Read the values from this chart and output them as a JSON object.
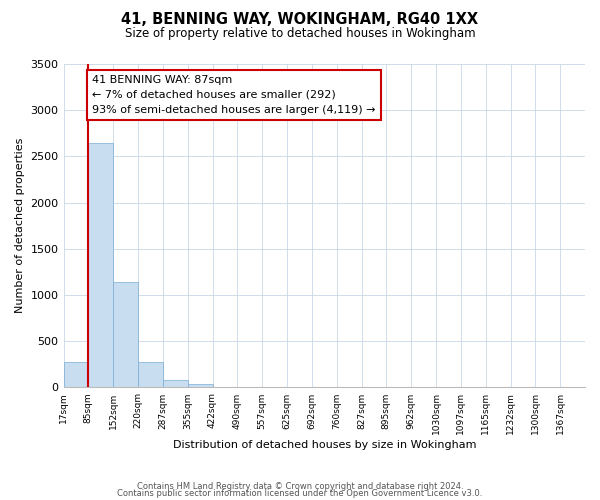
{
  "title": "41, BENNING WAY, WOKINGHAM, RG40 1XX",
  "subtitle": "Size of property relative to detached houses in Wokingham",
  "xlabel": "Distribution of detached houses by size in Wokingham",
  "ylabel": "Number of detached properties",
  "bar_color": "#c9ddf0",
  "bar_edge_color": "#7aadd4",
  "grid_color": "#c8d8e8",
  "background_color": "#ffffff",
  "annotation_box_color": "#ffffff",
  "annotation_box_edge": "#cc0000",
  "vline_color": "#cc0000",
  "tick_labels": [
    "17sqm",
    "85sqm",
    "152sqm",
    "220sqm",
    "287sqm",
    "355sqm",
    "422sqm",
    "490sqm",
    "557sqm",
    "625sqm",
    "692sqm",
    "760sqm",
    "827sqm",
    "895sqm",
    "962sqm",
    "1030sqm",
    "1097sqm",
    "1165sqm",
    "1232sqm",
    "1300sqm",
    "1367sqm"
  ],
  "bar_values": [
    275,
    2650,
    1140,
    275,
    80,
    40,
    0,
    0,
    0,
    0,
    0,
    0,
    0,
    0,
    0,
    0,
    0,
    0,
    0,
    0
  ],
  "ylim": [
    0,
    3500
  ],
  "yticks": [
    0,
    500,
    1000,
    1500,
    2000,
    2500,
    3000,
    3500
  ],
  "vline_x": 1,
  "annotation_text": "41 BENNING WAY: 87sqm\n← 7% of detached houses are smaller (292)\n93% of semi-detached houses are larger (4,119) →",
  "footer_line1": "Contains HM Land Registry data © Crown copyright and database right 2024.",
  "footer_line2": "Contains public sector information licensed under the Open Government Licence v3.0."
}
